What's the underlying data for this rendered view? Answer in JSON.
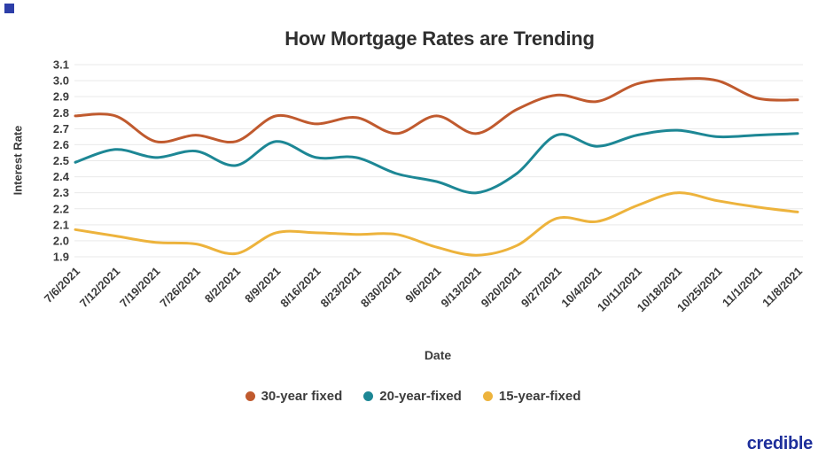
{
  "branding": {
    "logo_text": "credible",
    "logo_color": "#1e2f9b",
    "corner_square_color": "#2d3ea8"
  },
  "chart_data": {
    "type": "line",
    "title": "How Mortgage Rates are Trending",
    "xlabel": "Date",
    "ylabel": "Interest Rate",
    "x": [
      "7/6/2021",
      "7/12/2021",
      "7/19/2021",
      "7/26/2021",
      "8/2/2021",
      "8/9/2021",
      "8/16/2021",
      "8/23/2021",
      "8/30/2021",
      "9/6/2021",
      "9/13/2021",
      "9/20/2021",
      "9/27/2021",
      "10/4/2021",
      "10/11/2021",
      "10/18/2021",
      "10/25/2021",
      "11/1/2021",
      "11/8/2021"
    ],
    "series": [
      {
        "name": "30-year fixed",
        "color": "#c05a2e",
        "values": [
          2.78,
          2.78,
          2.62,
          2.66,
          2.62,
          2.78,
          2.73,
          2.77,
          2.67,
          2.78,
          2.67,
          2.82,
          2.91,
          2.87,
          2.98,
          3.01,
          3.0,
          2.89,
          2.88
        ]
      },
      {
        "name": "20-year-fixed",
        "color": "#1d8795",
        "values": [
          2.49,
          2.57,
          2.52,
          2.56,
          2.47,
          2.62,
          2.52,
          2.52,
          2.42,
          2.37,
          2.3,
          2.42,
          2.66,
          2.59,
          2.66,
          2.69,
          2.65,
          2.66,
          2.67
        ]
      },
      {
        "name": "15-year-fixed",
        "color": "#edb33c",
        "values": [
          2.07,
          2.03,
          1.99,
          1.98,
          1.92,
          2.05,
          2.05,
          2.04,
          2.04,
          1.96,
          1.91,
          1.97,
          2.14,
          2.12,
          2.22,
          2.3,
          2.25,
          2.21,
          2.18
        ]
      }
    ],
    "ylim": [
      1.9,
      3.1
    ],
    "ytick_step": 0.1,
    "ytick_labels": [
      "1.9",
      "2.0",
      "2.1",
      "2.2",
      "2.3",
      "2.4",
      "2.5",
      "2.6",
      "2.7",
      "2.8",
      "2.9",
      "3.0",
      "3.1"
    ],
    "grid": true,
    "grid_color": "#e9e9e9",
    "legend_position": "bottom"
  }
}
